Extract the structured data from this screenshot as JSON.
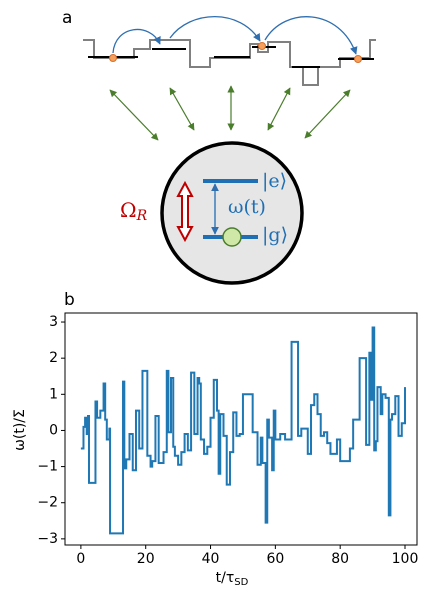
{
  "panel_a": {
    "label": "a",
    "excited": "|e⟩",
    "ground": "|g⟩",
    "frequency": "ω(t)",
    "rabi": {
      "symbol": "Ω",
      "subscript": "R"
    }
  },
  "chart_data": {
    "type": "step",
    "panel_label": "b",
    "x_label": {
      "text": "t/τ",
      "subscript": "SD"
    },
    "y_label": "ω(t)/Σ",
    "x": [
      0,
      0.8,
      1.3,
      1.8,
      2.2,
      2.5,
      4.5,
      5,
      6,
      7,
      7.5,
      8,
      8.8,
      9,
      13,
      13.4,
      14,
      15,
      16,
      17,
      18,
      19,
      20.5,
      21.5,
      22,
      23,
      24,
      25.5,
      26.5,
      27,
      27.8,
      28.5,
      29,
      30,
      31,
      32,
      33,
      34,
      35,
      36,
      36.5,
      37,
      38,
      39,
      40,
      41,
      42,
      42.5,
      43,
      44,
      45,
      46,
      47,
      48,
      49,
      50,
      53,
      54.5,
      55.5,
      56,
      57,
      57.5,
      58,
      59,
      59.5,
      60,
      61.5,
      63,
      65,
      67,
      68,
      70,
      71,
      72,
      73,
      74,
      75,
      76,
      77,
      79,
      80,
      83,
      84,
      86,
      88,
      89,
      89.5,
      90,
      90.5,
      91,
      91.5,
      92.5,
      93,
      94,
      95,
      95.5,
      96,
      97,
      98,
      99,
      100
    ],
    "values": [
      -0.5,
      0.1,
      0.35,
      -0.1,
      0.4,
      -1.45,
      0.8,
      0.35,
      0.55,
      1.3,
      0.3,
      -0.25,
      0.05,
      -2.85,
      1.35,
      -1.05,
      -0.8,
      -0.1,
      -1.1,
      0.55,
      -0.5,
      1.65,
      -0.7,
      -1.0,
      -0.85,
      0.4,
      -0.9,
      -0.6,
      1.65,
      -0.05,
      1.45,
      -0.45,
      -0.7,
      -0.95,
      -0.6,
      -0.1,
      -0.55,
      1.6,
      -0.1,
      1.45,
      1.3,
      -0.25,
      -0.65,
      -0.45,
      0.35,
      1.4,
      0.55,
      -1.2,
      0.45,
      -0.15,
      -1.5,
      -0.6,
      0.5,
      -0.15,
      -0.1,
      1.0,
      -0.05,
      -0.95,
      -0.2,
      -0.9,
      -2.55,
      0.3,
      -0.2,
      -1.1,
      0.55,
      -0.25,
      -0.1,
      -0.25,
      2.45,
      -0.15,
      0.05,
      -0.65,
      0.7,
      1.0,
      0.45,
      -0.15,
      -0.05,
      -0.35,
      -0.65,
      -0.25,
      -0.85,
      -0.5,
      0.3,
      2.0,
      -0.4,
      2.15,
      0.85,
      2.85,
      -0.55,
      -0.3,
      1.2,
      0.45,
      1.0,
      0.9,
      -2.35,
      0.3,
      0.45,
      0.95,
      -0.15,
      0.2,
      1.2
    ],
    "color": "#1f77b4",
    "xlim": [
      -4.9,
      103.7
    ],
    "xticks": [
      0,
      20,
      40,
      60,
      80,
      100
    ],
    "ylim": [
      -3.17,
      3.25
    ],
    "yticks": [
      {
        "value": -3,
        "label": "−3"
      },
      {
        "value": -2,
        "label": "−2"
      },
      {
        "value": -1,
        "label": "−1"
      },
      0,
      1,
      2,
      3
    ]
  }
}
